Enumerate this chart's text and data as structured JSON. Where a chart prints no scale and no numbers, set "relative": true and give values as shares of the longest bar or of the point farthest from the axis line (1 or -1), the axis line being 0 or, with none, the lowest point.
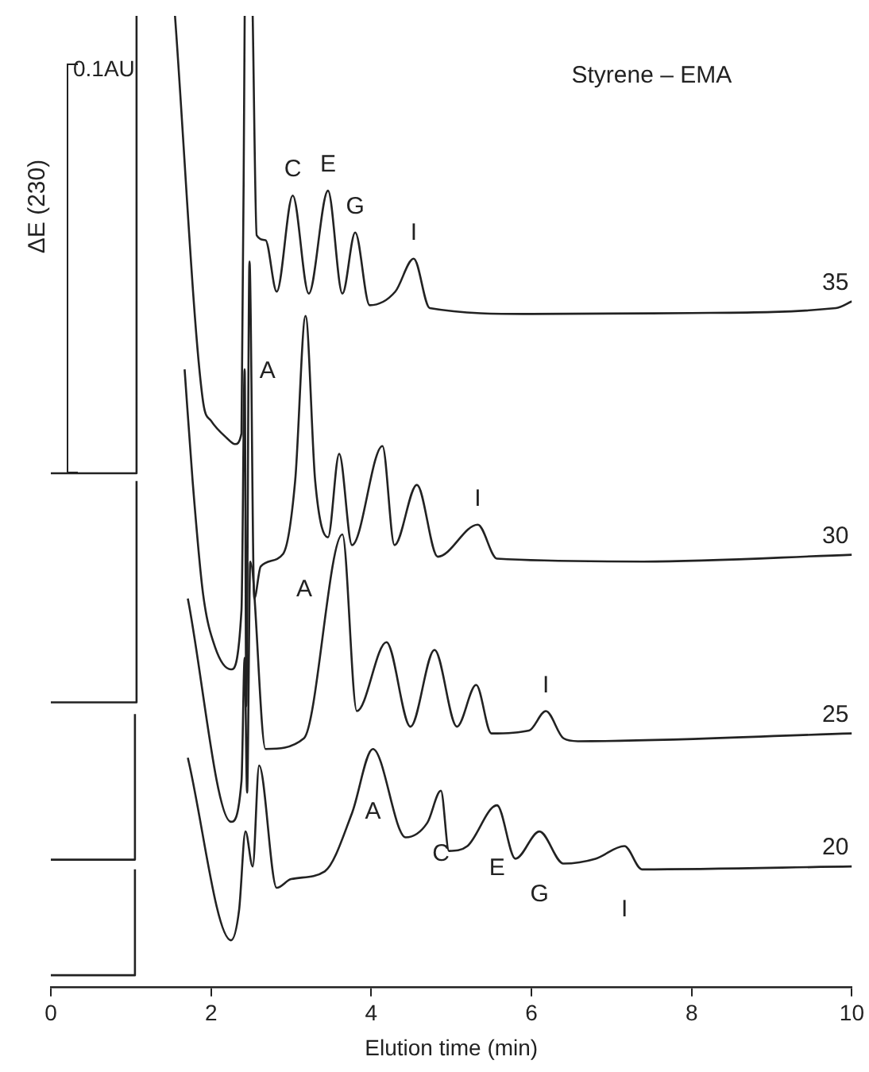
{
  "chart_data": {
    "type": "line",
    "title": "Styrene – EMA",
    "xlabel": "Elution time (min)",
    "ylabel": "ΔE (230)",
    "relative": true,
    "xlim": [
      0,
      10
    ],
    "xticks": [
      0,
      2,
      4,
      6,
      8,
      10
    ],
    "grid": false,
    "legend": false,
    "marker": "none",
    "line_style": "solid",
    "annotations": [
      "0.1AU",
      {
        "text": "C",
        "x": 3.02,
        "y": 0.815
      },
      {
        "text": "E",
        "x": 3.46,
        "y": 0.82
      },
      {
        "text": "G",
        "x": 3.8,
        "y": 0.777
      },
      {
        "text": "I",
        "x": 4.53,
        "y": 0.75
      },
      {
        "text": "A",
        "x": 3.18,
        "y": 0.691
      },
      {
        "text": "I",
        "x": 5.33,
        "y": 0.476
      },
      {
        "text": "A",
        "x": 3.64,
        "y": 0.466
      },
      {
        "text": "I",
        "x": 6.18,
        "y": 0.284
      },
      {
        "text": "A",
        "x": 4.02,
        "y": 0.245
      },
      {
        "text": "C",
        "x": 4.87,
        "y": 0.202
      },
      {
        "text": "E",
        "x": 5.57,
        "y": 0.187
      },
      {
        "text": "G",
        "x": 6.1,
        "y": 0.16
      },
      {
        "text": "I",
        "x": 7.16,
        "y": 0.145
      }
    ],
    "series": [
      {
        "name": "35",
        "color": "#222222",
        "x": [
          0,
          1.07,
          1.07,
          1.3,
          1.55,
          1.9,
          2.0,
          2.2,
          2.3,
          2.38,
          2.42,
          2.47,
          2.52,
          2.57,
          2.68,
          2.82,
          3.02,
          3.22,
          3.46,
          3.64,
          3.8,
          3.98,
          4.3,
          4.53,
          4.73,
          6,
          8,
          9.8,
          10
        ],
        "values": [
          0.529,
          0.529,
          1,
          null,
          1,
          0.603,
          0.583,
          0.565,
          0.559,
          0.57,
          1,
          null,
          1,
          0.774,
          0.769,
          0.716,
          0.815,
          0.714,
          0.82,
          0.714,
          0.777,
          0.702,
          0.716,
          0.75,
          0.699,
          0.693,
          0.694,
          0.699,
          0.706
        ]
      },
      {
        "name": "30",
        "color": "#222222",
        "x": [
          0,
          1.07,
          1.07,
          1.3,
          1.67,
          1.77,
          1.9,
          2.05,
          2.25,
          2.38,
          2.42,
          2.44,
          2.48,
          2.54,
          2.62,
          2.9,
          3.05,
          3.18,
          3.3,
          3.46,
          3.6,
          3.76,
          4.14,
          4.29,
          4.57,
          4.83,
          5.33,
          5.57,
          7.4,
          10
        ],
        "values": [
          0.293,
          0.293,
          0.521,
          null,
          0.636,
          0.521,
          0.405,
          0.35,
          0.327,
          0.388,
          0.636,
          0.289,
          0.747,
          0.4,
          0.433,
          0.446,
          0.521,
          0.691,
          0.521,
          0.463,
          0.549,
          0.455,
          0.557,
          0.455,
          0.517,
          0.443,
          0.476,
          0.441,
          0.438,
          0.445
        ]
      },
      {
        "name": "25",
        "color": "#222222",
        "x": [
          0,
          1.05,
          1.05,
          1.3,
          1.71,
          2.25,
          2.38,
          2.42,
          2.45,
          2.49,
          2.68,
          3.16,
          3.64,
          3.82,
          4.19,
          4.49,
          4.79,
          5.07,
          5.31,
          5.5,
          5.97,
          6.18,
          6.4,
          6.58,
          10
        ],
        "values": [
          0.131,
          0.131,
          0.281,
          null,
          0.4,
          0.17,
          0.212,
          0.339,
          0.2,
          0.438,
          0.245,
          0.256,
          0.466,
          0.284,
          0.355,
          0.268,
          0.347,
          0.268,
          0.311,
          0.261,
          0.264,
          0.284,
          0.256,
          0.253,
          0.261
        ]
      },
      {
        "name": "20",
        "color": "#222222",
        "x": [
          0,
          1.05,
          1.05,
          1.3,
          1.71,
          2.25,
          2.35,
          2.43,
          2.52,
          2.6,
          2.82,
          3.0,
          3.42,
          3.76,
          4.02,
          4.43,
          4.7,
          4.87,
          4.97,
          5.2,
          5.57,
          5.8,
          6.1,
          6.4,
          6.8,
          7.16,
          7.38,
          10
        ],
        "values": [
          0.012,
          0.012,
          0.121,
          null,
          0.236,
          0.048,
          0.079,
          0.16,
          0.124,
          0.228,
          0.102,
          0.111,
          0.119,
          0.179,
          0.245,
          0.154,
          0.169,
          0.202,
          0.14,
          0.145,
          0.187,
          0.132,
          0.16,
          0.127,
          0.132,
          0.145,
          0.121,
          0.124
        ]
      }
    ]
  }
}
